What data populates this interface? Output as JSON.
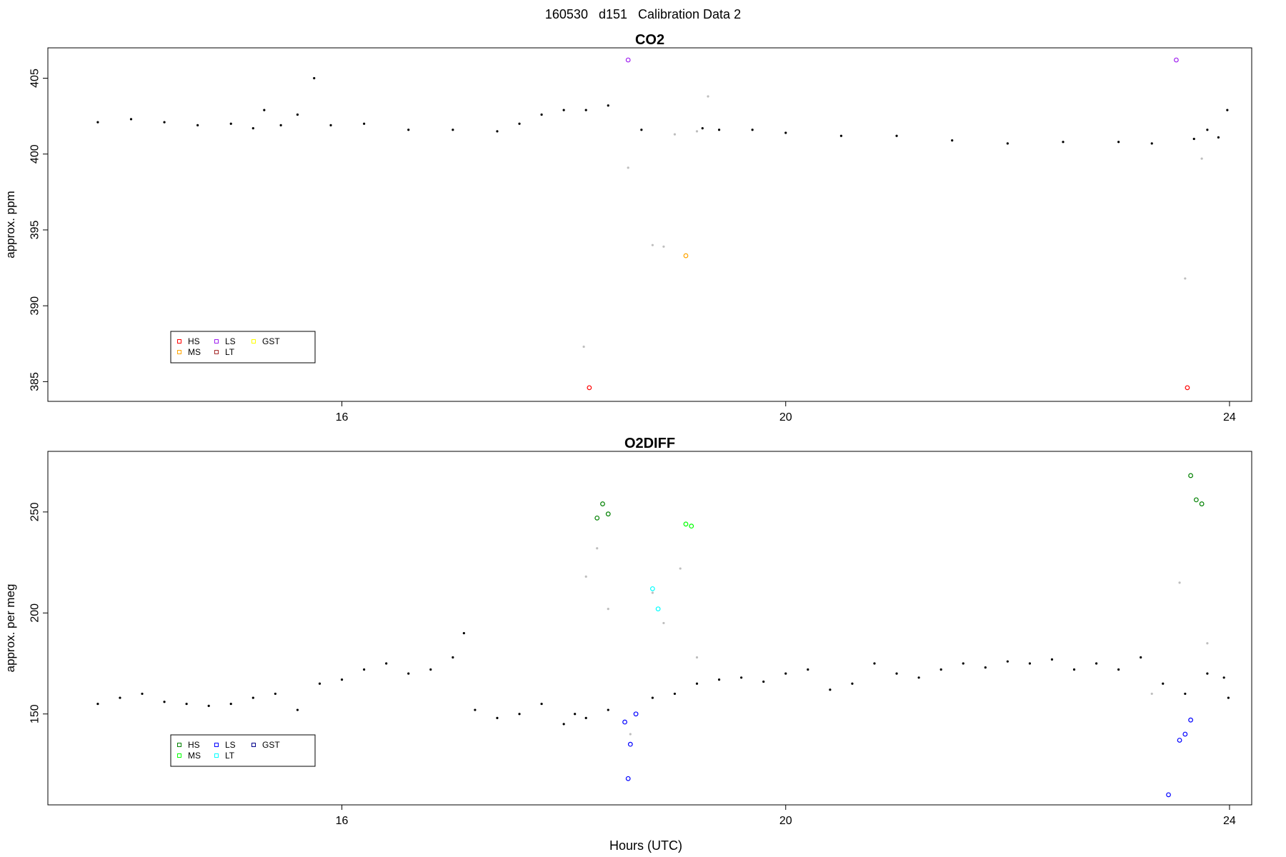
{
  "figure": {
    "title": "160530   d151   Calibration Data 2",
    "xlabel": "Hours (UTC)"
  },
  "chart_data": [
    {
      "type": "scatter",
      "title": "CO2",
      "ylabel": "approx. ppm",
      "xlabel": "",
      "xlim": [
        13.35,
        24.2
      ],
      "ylim": [
        383.7,
        407.0
      ],
      "xticks": [
        16,
        20,
        24
      ],
      "yticks": [
        385,
        390,
        395,
        400,
        405
      ],
      "grid": false,
      "legend": {
        "position": "bottom-left",
        "columns": 3,
        "entries": [
          {
            "label": "HS",
            "color": "#ff0000"
          },
          {
            "label": "MS",
            "color": "#ffa500"
          },
          {
            "label": "LS",
            "color": "#a020f0"
          },
          {
            "label": "LT",
            "color": "#a52a2a"
          },
          {
            "label": "GST",
            "color": "#ffff00"
          }
        ]
      },
      "series": [
        {
          "marker": "dot",
          "color": "#000000",
          "x": [
            13.8,
            14.1,
            14.4,
            14.7,
            15.0,
            15.2,
            15.3,
            15.45,
            15.6,
            15.75,
            15.9,
            16.2,
            16.6,
            17.0,
            17.4,
            17.6,
            17.8,
            18.0,
            18.2,
            18.4,
            18.7,
            19.25,
            19.4,
            19.7,
            20.0,
            20.5,
            21.0,
            21.5,
            22.0,
            22.5,
            23.0,
            23.3,
            23.68,
            23.8,
            23.9,
            23.98
          ],
          "y": [
            402.1,
            402.3,
            402.1,
            401.9,
            402.0,
            401.7,
            402.9,
            401.9,
            402.6,
            405.0,
            401.9,
            402.0,
            401.6,
            401.6,
            401.5,
            402.0,
            402.6,
            402.9,
            402.9,
            403.2,
            401.6,
            401.7,
            401.6,
            401.6,
            401.4,
            401.2,
            401.2,
            400.9,
            400.7,
            400.8,
            400.8,
            400.7,
            401.0,
            401.6,
            401.1,
            402.9
          ]
        },
        {
          "marker": "dot",
          "color": "#bebebe",
          "x": [
            18.18,
            18.58,
            18.8,
            18.9,
            19.0,
            19.2,
            19.3,
            23.6,
            23.75
          ],
          "y": [
            387.3,
            399.1,
            394.0,
            393.9,
            401.3,
            401.5,
            403.8,
            391.8,
            399.7
          ]
        },
        {
          "marker": "circle",
          "color": "#ff0000",
          "label": "HS",
          "x": [
            18.23,
            23.62
          ],
          "y": [
            384.6,
            384.6
          ]
        },
        {
          "marker": "circle",
          "color": "#a020f0",
          "label": "LS",
          "x": [
            18.58,
            23.52
          ],
          "y": [
            406.2,
            406.2
          ]
        },
        {
          "marker": "circle",
          "color": "#ffa500",
          "label": "MS",
          "x": [
            19.1
          ],
          "y": [
            393.3
          ]
        }
      ]
    },
    {
      "type": "scatter",
      "title": "O2DIFF",
      "ylabel": "approx. per meg",
      "xlabel": "",
      "xlim": [
        13.35,
        24.2
      ],
      "ylim": [
        105.0,
        280.0
      ],
      "xticks": [
        16,
        20,
        24
      ],
      "yticks": [
        150,
        200,
        250
      ],
      "grid": false,
      "legend": {
        "position": "bottom-left",
        "columns": 3,
        "entries": [
          {
            "label": "HS",
            "color": "#008000"
          },
          {
            "label": "MS",
            "color": "#00ff00"
          },
          {
            "label": "LS",
            "color": "#0000ff"
          },
          {
            "label": "LT",
            "color": "#00ffff"
          },
          {
            "label": "GST",
            "color": "#00008b"
          }
        ]
      },
      "series": [
        {
          "marker": "dot",
          "color": "#000000",
          "x": [
            13.8,
            14.0,
            14.2,
            14.4,
            14.6,
            14.8,
            15.0,
            15.2,
            15.4,
            15.6,
            15.8,
            16.0,
            16.2,
            16.4,
            16.6,
            16.8,
            17.0,
            17.1,
            17.2,
            17.4,
            17.6,
            17.8,
            18.0,
            18.1,
            18.2,
            18.4,
            18.8,
            19.0,
            19.2,
            19.4,
            19.6,
            19.8,
            20.0,
            20.2,
            20.4,
            20.6,
            20.8,
            21.0,
            21.2,
            21.4,
            21.6,
            21.8,
            22.0,
            22.2,
            22.4,
            22.6,
            22.8,
            23.0,
            23.2,
            23.4,
            23.6,
            23.8,
            23.95,
            23.99
          ],
          "y": [
            155,
            158,
            160,
            156,
            155,
            154,
            155,
            158,
            160,
            152,
            165,
            167,
            172,
            175,
            170,
            172,
            178,
            190,
            152,
            148,
            150,
            155,
            145,
            150,
            148,
            152,
            158,
            160,
            165,
            167,
            168,
            166,
            170,
            172,
            162,
            165,
            175,
            170,
            168,
            172,
            175,
            173,
            176,
            175,
            177,
            172,
            175,
            172,
            178,
            165,
            160,
            170,
            168,
            158
          ]
        },
        {
          "marker": "dot",
          "color": "#bebebe",
          "x": [
            18.2,
            18.3,
            18.4,
            18.6,
            18.8,
            18.9,
            19.05,
            19.2,
            23.3,
            23.55,
            23.8
          ],
          "y": [
            218,
            232,
            202,
            140,
            210,
            195,
            222,
            178,
            160,
            215,
            185
          ]
        },
        {
          "marker": "circle",
          "color": "#008000",
          "label": "HS",
          "x": [
            18.3,
            18.35,
            18.4,
            23.65,
            23.7,
            23.75
          ],
          "y": [
            247,
            254,
            249,
            268,
            256,
            254
          ]
        },
        {
          "marker": "circle",
          "color": "#00ff00",
          "label": "MS",
          "x": [
            19.1,
            19.15
          ],
          "y": [
            244,
            243
          ]
        },
        {
          "marker": "circle",
          "color": "#0000ff",
          "label": "LS",
          "x": [
            18.55,
            18.6,
            18.65,
            23.55,
            23.6,
            23.65
          ],
          "y": [
            146,
            135,
            150,
            137,
            140,
            147
          ]
        },
        {
          "marker": "circle",
          "color": "#00ffff",
          "label": "LT",
          "x": [
            18.8,
            18.85
          ],
          "y": [
            212,
            202
          ]
        },
        {
          "marker": "circle",
          "color": "#0000ff",
          "label": "LS",
          "x": [
            18.58,
            23.45
          ],
          "y": [
            118,
            110
          ]
        }
      ]
    }
  ]
}
